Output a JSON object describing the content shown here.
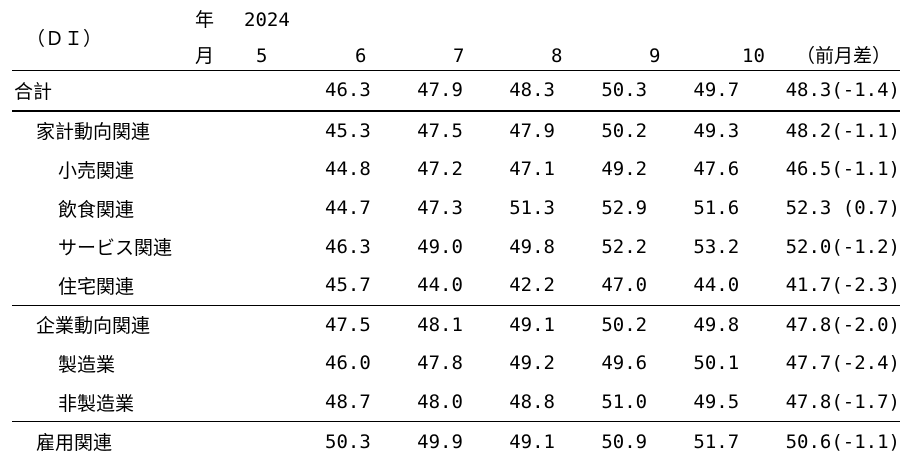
{
  "header": {
    "unit_label": "（ＤＩ）",
    "year_label": "年",
    "month_label": "月",
    "year_value": "2024",
    "months": [
      "5",
      "6",
      "7",
      "8",
      "9",
      "10"
    ],
    "diff_label": "（前月差）"
  },
  "rows": [
    {
      "label": "合計",
      "values": [
        "46.3",
        "47.9",
        "48.3",
        "50.3",
        "49.7",
        "48.3"
      ],
      "diff": "(-1.4)"
    },
    {
      "label": "家計動向関連",
      "values": [
        "45.3",
        "47.5",
        "47.9",
        "50.2",
        "49.3",
        "48.2"
      ],
      "diff": "(-1.1)"
    },
    {
      "label": "小売関連",
      "values": [
        "44.8",
        "47.2",
        "47.1",
        "49.2",
        "47.6",
        "46.5"
      ],
      "diff": "(-1.1)"
    },
    {
      "label": "飲食関連",
      "values": [
        "44.7",
        "47.3",
        "51.3",
        "52.9",
        "51.6",
        "52.3"
      ],
      "diff": "(0.7)"
    },
    {
      "label": "サービス関連",
      "values": [
        "46.3",
        "49.0",
        "49.8",
        "52.2",
        "53.2",
        "52.0"
      ],
      "diff": "(-1.2)"
    },
    {
      "label": "住宅関連",
      "values": [
        "45.7",
        "44.0",
        "42.2",
        "47.0",
        "44.0",
        "41.7"
      ],
      "diff": "(-2.3)"
    },
    {
      "label": "企業動向関連",
      "values": [
        "47.5",
        "48.1",
        "49.1",
        "50.2",
        "49.8",
        "47.8"
      ],
      "diff": "(-2.0)"
    },
    {
      "label": "製造業",
      "values": [
        "46.0",
        "47.8",
        "49.2",
        "49.6",
        "50.1",
        "47.7"
      ],
      "diff": "(-2.4)"
    },
    {
      "label": "非製造業",
      "values": [
        "48.7",
        "48.0",
        "48.8",
        "51.0",
        "49.5",
        "47.8"
      ],
      "diff": "(-1.7)"
    },
    {
      "label": "雇用関連",
      "values": [
        "50.3",
        "49.9",
        "49.1",
        "50.9",
        "51.7",
        "50.6"
      ],
      "diff": "(-1.1)"
    }
  ]
}
